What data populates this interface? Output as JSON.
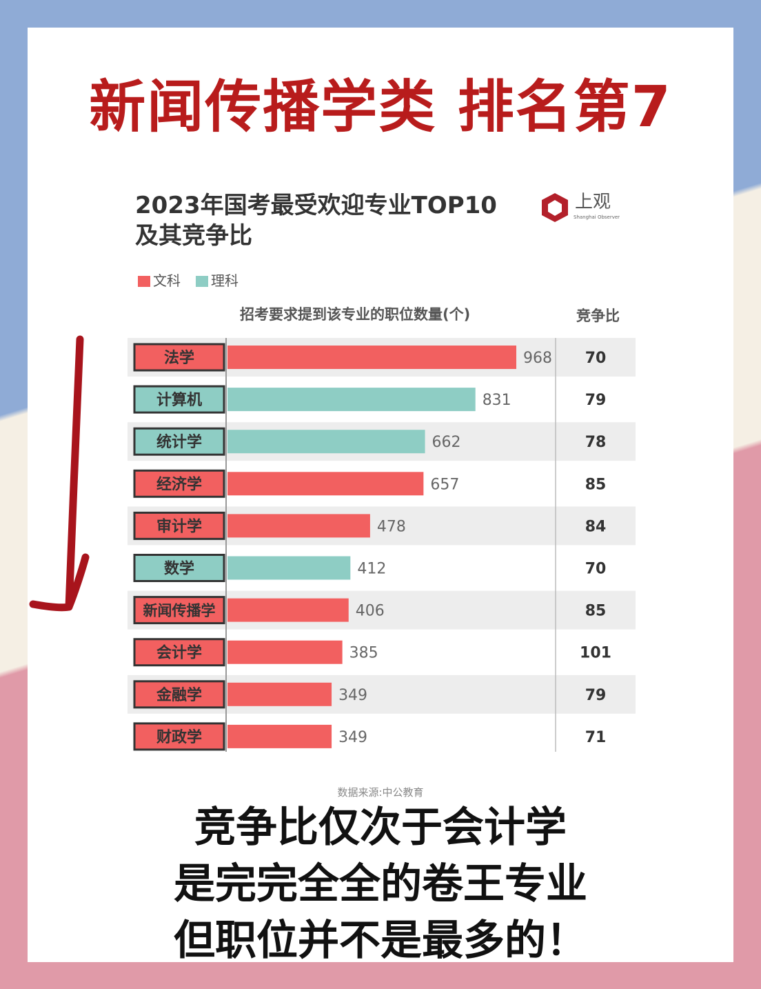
{
  "headline": "新闻传播学类 排名第7",
  "chart_data": {
    "type": "bar",
    "orientation": "horizontal",
    "title": "2023年国考最受欢迎专业TOP10",
    "subtitle": "及其竞争比",
    "xlabel": "招考要求提到该专业的职位数量(个)",
    "ratio_header": "竞争比",
    "legend": [
      {
        "name": "文科",
        "color": "#f26060"
      },
      {
        "name": "理科",
        "color": "#8ecdc4"
      }
    ],
    "categories": [
      "法学",
      "计算机",
      "统计学",
      "经济学",
      "审计学",
      "数学",
      "新闻传播学",
      "会计学",
      "金融学",
      "财政学"
    ],
    "values": [
      968,
      831,
      662,
      657,
      478,
      412,
      406,
      385,
      349,
      349
    ],
    "group": [
      "文科",
      "理科",
      "理科",
      "文科",
      "文科",
      "理科",
      "文科",
      "文科",
      "文科",
      "文科"
    ],
    "competition_ratio": [
      70,
      79,
      78,
      85,
      84,
      70,
      85,
      101,
      79,
      71
    ],
    "xlim": [
      0,
      968
    ],
    "source": "数据来源:中公教育"
  },
  "logo": {
    "text": "上观",
    "sub": "Shanghai Observer",
    "color": "#b3202a"
  },
  "caption": [
    "竞争比仅次于会计学",
    "是完完全全的卷王专业",
    "但职位并不是最多的！"
  ],
  "colors": {
    "headline": "#b81c1c",
    "arrow": "#a8141c"
  }
}
